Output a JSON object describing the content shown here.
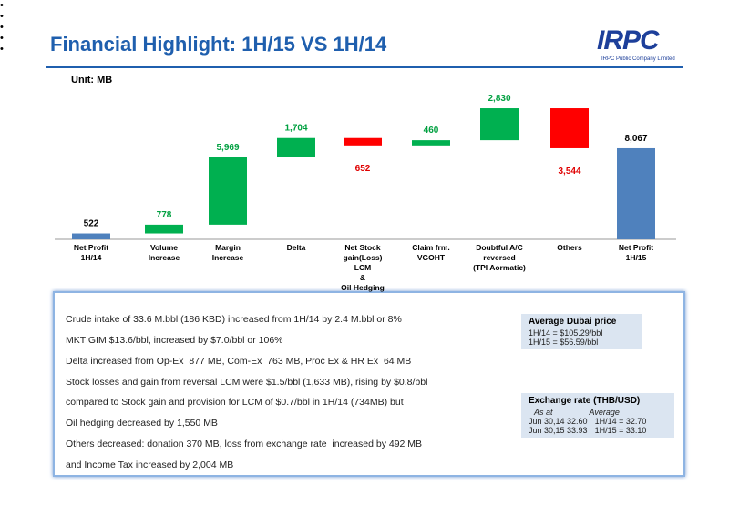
{
  "header": {
    "title": "Financial Highlight: 1H/15 VS 1H/14",
    "logo": "IRPC",
    "company": "IRPC Public Company Limited"
  },
  "chart_data": {
    "type": "waterfall",
    "unit": "Unit: MB",
    "categories": [
      "Net Profit\n1H/14",
      "Volume\nIncrease",
      "Margin\nIncrease",
      "Delta",
      "Net Stock\ngain(Loss)\nLCM\n&\nOil Hedging",
      "Claim frm.\nVGOHT",
      "Doubtful A/C\nreversed\n(TPI Aormatic)",
      "Others",
      "Net Profit\n1H/15"
    ],
    "values": [
      522,
      778,
      5969,
      1704,
      -652,
      460,
      2830,
      -3544,
      8067
    ],
    "value_labels": [
      "522",
      "778",
      "5,969",
      "1,704",
      "652",
      "460",
      "2,830",
      "3,544",
      "8,067"
    ],
    "color_total": "#4f81bd",
    "color_increase": "#00b050",
    "color_decrease": "#ff0000"
  },
  "notes": {
    "bullets": [
      [
        "Crude intake of 33.6 M.bbl (186 KBD) increased from 1H/14 by 2.4 M.bbl or 8%"
      ],
      [
        "MKT GIM $13.6/bbl, increased by $7.0/bbl or 106%"
      ],
      [
        "Delta increased from Op-Ex  877 MB, Com-Ex  763 MB, Proc Ex & HR Ex  64 MB"
      ],
      [
        "Stock losses and gain from reversal LCM were $1.5/bbl (1,633 MB), rising by $0.8/bbl",
        "compared to Stock gain and provision for LCM of $0.7/bbl in 1H/14 (734MB) but",
        "Oil hedging decreased by 1,550 MB"
      ],
      [
        "Others decreased: donation 370 MB, loss from exchange rate  increased by 492 MB",
        "and Income Tax increased by 2,004 MB"
      ]
    ]
  },
  "dubai": {
    "title": "Average Dubai price",
    "rows": [
      "1H/14 =  $105.29/bbl",
      "1H/15 =    $56.59/bbl"
    ]
  },
  "exchange": {
    "title": "Exchange rate (THB/USD)",
    "head": [
      "As at",
      "Average"
    ],
    "rows": [
      [
        "Jun 30,14 32.60",
        "1H/14 = 32.70"
      ],
      [
        "Jun 30,15 33.93",
        "1H/15 = 33.10"
      ]
    ]
  }
}
